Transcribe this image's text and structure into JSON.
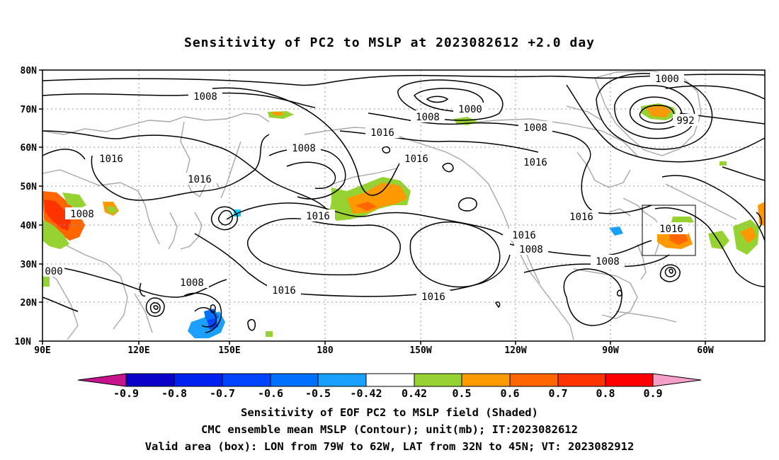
{
  "title": "Sensitivity of PC2 to MSLP at 2023082612 +2.0 day",
  "lat_ticks": [
    "80N",
    "70N",
    "60N",
    "50N",
    "40N",
    "30N",
    "20N",
    "10N"
  ],
  "lon_ticks": [
    "90E",
    "120E",
    "150E",
    "180",
    "150W",
    "120W",
    "90W",
    "60W"
  ],
  "contour_labels": [
    {
      "text": "1008"
    },
    {
      "text": "1000"
    },
    {
      "text": "1008"
    },
    {
      "text": "1000"
    },
    {
      "text": "992"
    },
    {
      "text": "1008"
    },
    {
      "text": "1016"
    },
    {
      "text": "1016"
    },
    {
      "text": "1008"
    },
    {
      "text": "1016"
    },
    {
      "text": "1016"
    },
    {
      "text": "1016"
    },
    {
      "text": "1008"
    },
    {
      "text": "1016"
    },
    {
      "text": "1016"
    },
    {
      "text": "1016"
    },
    {
      "text": "1008"
    },
    {
      "text": "1016"
    },
    {
      "text": "1008"
    },
    {
      "text": "1016"
    },
    {
      "text": "1016"
    },
    {
      "text": "1008"
    },
    {
      "text": "000"
    }
  ],
  "colorbar": {
    "labels": [
      "-0.9",
      "-0.8",
      "-0.7",
      "-0.6",
      "-0.5",
      "-0.42",
      "0.42",
      "0.5",
      "0.6",
      "0.7",
      "0.8",
      "0.9"
    ],
    "colors": [
      "#0a00c8",
      "#0022f0",
      "#0044ff",
      "#0070ff",
      "#1ca0ff",
      "#00d2ff",
      "#ffffff",
      "#96d232",
      "#ff9900",
      "#ff6600",
      "#ff3300",
      "#ff0000"
    ],
    "low_end_color": "#c8148c",
    "high_end_color": "#f5a0c8"
  },
  "captions": [
    "Sensitivity of EOF PC2 to MSLP field (Shaded)",
    "CMC ensemble mean MSLP (Contour); unit(mb); IT:2023082612",
    "Valid area (box): LON from 79W to 62W, LAT from 32N to 45N; VT: 2023082912"
  ]
}
